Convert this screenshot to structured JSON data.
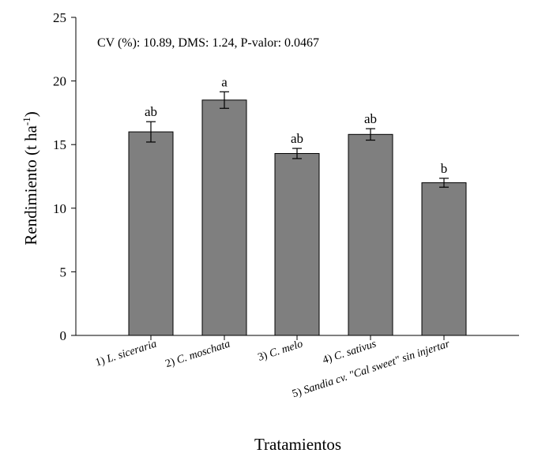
{
  "chart_data": {
    "type": "bar",
    "title": "",
    "annotation": "CV (%): 10.89, DMS: 1.24, P-valor: 0.0467",
    "xlabel": "Tratamientos",
    "ylabel_main": "Rendimiento (t ha",
    "ylabel_sup": "-1",
    "ylabel_close": ")",
    "ylim": [
      0,
      25
    ],
    "yticks": [
      0,
      5,
      10,
      15,
      20,
      25
    ],
    "categories": [
      "1) L. siceraria",
      "2) C. moschata",
      "3) C. melo",
      "4) C. sativus",
      "5) Sandia cv. \"Cal sweet\" sin injertar"
    ],
    "category_parts": [
      {
        "prefix": "1)",
        "italic": "L. siceraria",
        "suffix": ""
      },
      {
        "prefix": "2)",
        "italic": "C. moschata",
        "suffix": ""
      },
      {
        "prefix": "3)",
        "italic": "C. melo",
        "suffix": ""
      },
      {
        "prefix": "4)",
        "italic": "C. sativus",
        "suffix": ""
      },
      {
        "prefix": "5)",
        "italic": "Sandia cv. \"Cal sweet\" sin injertar",
        "suffix": ""
      }
    ],
    "values": [
      16.0,
      18.5,
      14.3,
      15.8,
      12.0
    ],
    "errors": [
      0.8,
      0.65,
      0.4,
      0.45,
      0.35
    ],
    "letters": [
      "ab",
      "a",
      "ab",
      "ab",
      "b"
    ],
    "colors": {
      "bar": "#7f7f7f",
      "edge": "#000000"
    },
    "grid": false,
    "legend": "none"
  }
}
